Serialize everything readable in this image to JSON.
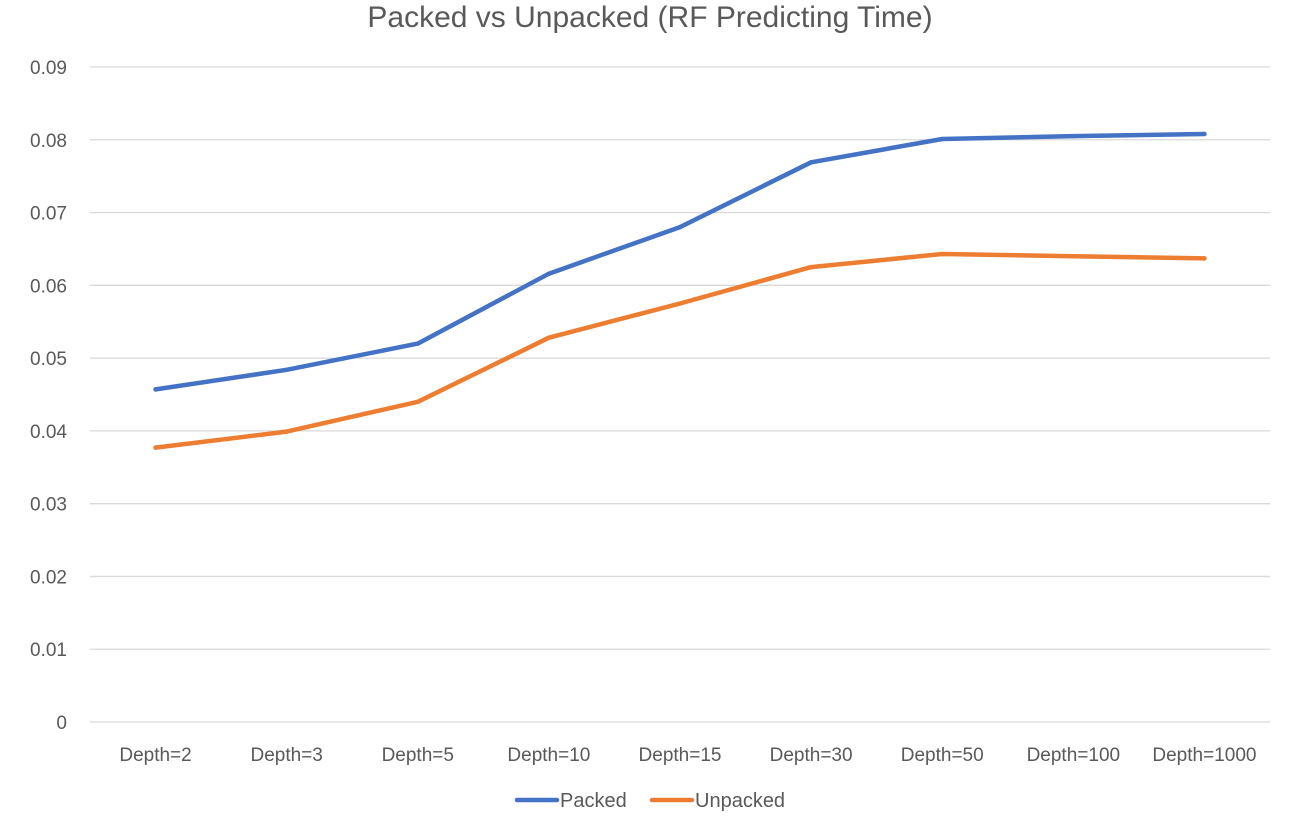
{
  "chart_data": {
    "type": "line",
    "title": "Packed vs Unpacked (RF Predicting Time)",
    "xlabel": "",
    "ylabel": "",
    "categories": [
      "Depth=2",
      "Depth=3",
      "Depth=5",
      "Depth=10",
      "Depth=15",
      "Depth=30",
      "Depth=50",
      "Depth=100",
      "Depth=1000"
    ],
    "ylim": [
      0,
      0.09
    ],
    "yticks": [
      0,
      0.01,
      0.02,
      0.03,
      0.04,
      0.05,
      0.06,
      0.07,
      0.08,
      0.09
    ],
    "ytick_labels": [
      "0",
      "0.01",
      "0.02",
      "0.03",
      "0.04",
      "0.05",
      "0.06",
      "0.07",
      "0.08",
      "0.09"
    ],
    "grid": true,
    "legend_position": "bottom",
    "series": [
      {
        "name": "Packed",
        "color": "#4472C4",
        "values": [
          0.0457,
          0.0484,
          0.052,
          0.0616,
          0.068,
          0.0769,
          0.0801,
          0.0805,
          0.0808
        ]
      },
      {
        "name": "Unpacked",
        "color": "#ED7D31",
        "values": [
          0.0377,
          0.0399,
          0.044,
          0.0528,
          0.0575,
          0.0625,
          0.0643,
          0.064,
          0.0637
        ]
      }
    ]
  }
}
